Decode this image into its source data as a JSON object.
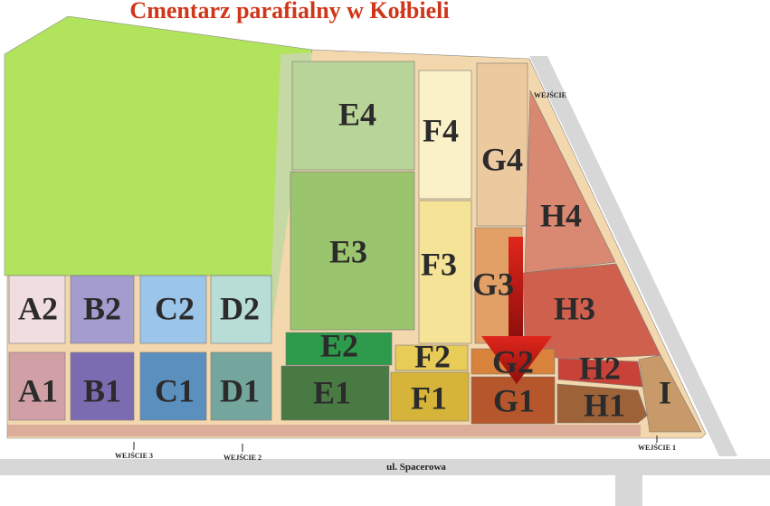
{
  "title": "Cmentarz parafialny w Kołbieli",
  "sections": [
    {
      "label": "A2"
    },
    {
      "label": "B2"
    },
    {
      "label": "C2"
    },
    {
      "label": "D2"
    },
    {
      "label": "A1"
    },
    {
      "label": "B1"
    },
    {
      "label": "C1"
    },
    {
      "label": "D1"
    },
    {
      "label": "E4"
    },
    {
      "label": "F4"
    },
    {
      "label": "G4"
    },
    {
      "label": "H4"
    },
    {
      "label": "E3"
    },
    {
      "label": "F3"
    },
    {
      "label": "G3"
    },
    {
      "label": "H3"
    },
    {
      "label": "E2"
    },
    {
      "label": "F2"
    },
    {
      "label": "G2"
    },
    {
      "label": "H2"
    },
    {
      "label": "E1"
    },
    {
      "label": "F1"
    },
    {
      "label": "G1"
    },
    {
      "label": "H1"
    },
    {
      "label": "I"
    }
  ],
  "entrances": [
    {
      "label": "WEJŚCIE"
    },
    {
      "label": "WEJŚCIE 1"
    },
    {
      "label": "WEJŚCIE 2"
    },
    {
      "label": "WEJŚCIE 3"
    }
  ],
  "street": "ul. Spacerowa"
}
